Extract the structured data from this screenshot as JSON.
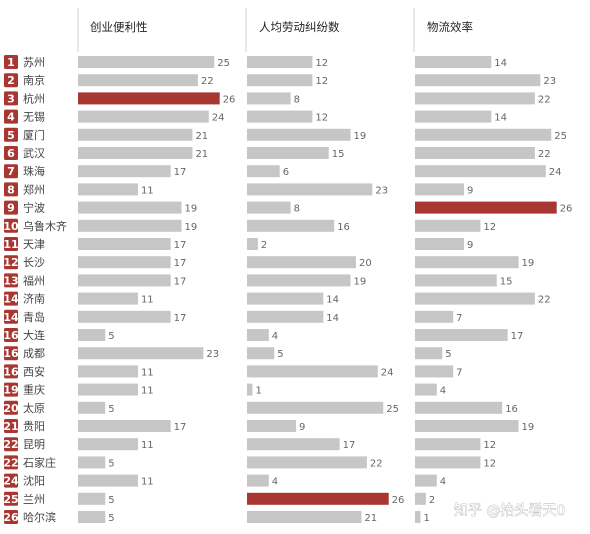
{
  "chart_data": {
    "type": "bar",
    "columns": [
      "创业便利性",
      "人均劳动纠纷数",
      "物流效率"
    ],
    "rows": [
      {
        "rank": "1",
        "city": "苏州",
        "values": [
          25,
          12,
          14
        ]
      },
      {
        "rank": "2",
        "city": "南京",
        "values": [
          22,
          12,
          23
        ]
      },
      {
        "rank": "3",
        "city": "杭州",
        "values": [
          26,
          8,
          22
        ]
      },
      {
        "rank": "4",
        "city": "无锡",
        "values": [
          24,
          12,
          14
        ]
      },
      {
        "rank": "5",
        "city": "厦门",
        "values": [
          21,
          19,
          25
        ]
      },
      {
        "rank": "6",
        "city": "武汉",
        "values": [
          21,
          15,
          22
        ]
      },
      {
        "rank": "7",
        "city": "珠海",
        "values": [
          17,
          6,
          24
        ]
      },
      {
        "rank": "8",
        "city": "郑州",
        "values": [
          11,
          23,
          9
        ]
      },
      {
        "rank": "9",
        "city": "宁波",
        "values": [
          19,
          8,
          26
        ]
      },
      {
        "rank": "10",
        "city": "乌鲁木齐",
        "values": [
          19,
          16,
          12
        ]
      },
      {
        "rank": "11",
        "city": "天津",
        "values": [
          17,
          2,
          9
        ]
      },
      {
        "rank": "12",
        "city": "长沙",
        "values": [
          17,
          20,
          19
        ]
      },
      {
        "rank": "13",
        "city": "福州",
        "values": [
          17,
          19,
          15
        ]
      },
      {
        "rank": "14",
        "city": "济南",
        "values": [
          11,
          14,
          22
        ]
      },
      {
        "rank": "14",
        "city": "青岛",
        "values": [
          17,
          14,
          7
        ]
      },
      {
        "rank": "16",
        "city": "大连",
        "values": [
          5,
          4,
          17
        ]
      },
      {
        "rank": "16",
        "city": "成都",
        "values": [
          23,
          5,
          5
        ]
      },
      {
        "rank": "16",
        "city": "西安",
        "values": [
          11,
          24,
          7
        ]
      },
      {
        "rank": "19",
        "city": "重庆",
        "values": [
          11,
          1,
          4
        ]
      },
      {
        "rank": "20",
        "city": "太原",
        "values": [
          5,
          25,
          16
        ]
      },
      {
        "rank": "21",
        "city": "贵阳",
        "values": [
          17,
          9,
          19
        ]
      },
      {
        "rank": "22",
        "city": "昆明",
        "values": [
          11,
          17,
          12
        ]
      },
      {
        "rank": "22",
        "city": "石家庄",
        "values": [
          5,
          22,
          12
        ]
      },
      {
        "rank": "24",
        "city": "沈阳",
        "values": [
          11,
          4,
          4
        ]
      },
      {
        "rank": "25",
        "city": "兰州",
        "values": [
          5,
          26,
          2
        ]
      },
      {
        "rank": "26",
        "city": "哈尔滨",
        "values": [
          5,
          21,
          1
        ]
      }
    ],
    "max_value": 26,
    "highlight_value": 26
  },
  "watermark": "知乎 @抬头看天0",
  "colors": {
    "bar": "#c6c6c6",
    "highlight": "#a83732",
    "rank_badge": "#a83732",
    "divider": "#cfcfcf"
  }
}
